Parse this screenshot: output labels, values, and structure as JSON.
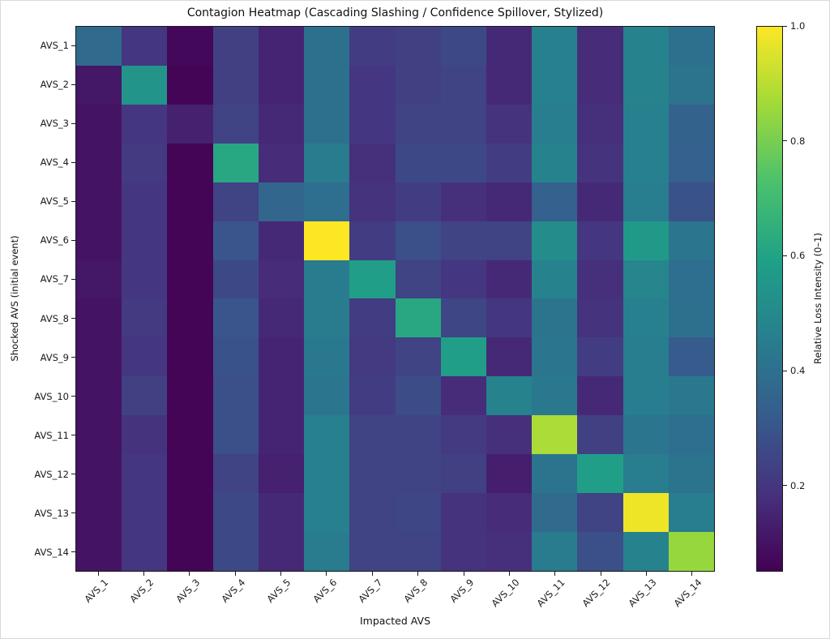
{
  "chart_data": {
    "type": "heatmap",
    "title": "Contagion Heatmap (Cascading Slashing / Confidence Spillover, Stylized)",
    "xlabel": "Impacted AVS",
    "ylabel": "Shocked AVS (initial event)",
    "x_categories": [
      "AVS_1",
      "AVS_2",
      "AVS_3",
      "AVS_4",
      "AVS_5",
      "AVS_6",
      "AVS_7",
      "AVS_8",
      "AVS_9",
      "AVS_10",
      "AVS_11",
      "AVS_12",
      "AVS_13",
      "AVS_14"
    ],
    "y_categories": [
      "AVS_1",
      "AVS_2",
      "AVS_3",
      "AVS_4",
      "AVS_5",
      "AVS_6",
      "AVS_7",
      "AVS_8",
      "AVS_9",
      "AVS_10",
      "AVS_11",
      "AVS_12",
      "AVS_13",
      "AVS_14"
    ],
    "matrix": [
      [
        0.38,
        0.2,
        0.07,
        0.23,
        0.15,
        0.4,
        0.22,
        0.23,
        0.26,
        0.16,
        0.46,
        0.17,
        0.47,
        0.4
      ],
      [
        0.11,
        0.54,
        0.06,
        0.23,
        0.15,
        0.4,
        0.2,
        0.23,
        0.24,
        0.16,
        0.46,
        0.17,
        0.47,
        0.41
      ],
      [
        0.1,
        0.2,
        0.14,
        0.24,
        0.16,
        0.4,
        0.2,
        0.24,
        0.24,
        0.19,
        0.45,
        0.18,
        0.46,
        0.35
      ],
      [
        0.1,
        0.21,
        0.06,
        0.62,
        0.17,
        0.44,
        0.18,
        0.26,
        0.26,
        0.22,
        0.47,
        0.19,
        0.46,
        0.34
      ],
      [
        0.1,
        0.2,
        0.06,
        0.24,
        0.36,
        0.39,
        0.19,
        0.22,
        0.18,
        0.16,
        0.34,
        0.16,
        0.45,
        0.29
      ],
      [
        0.1,
        0.2,
        0.06,
        0.3,
        0.16,
        1.0,
        0.22,
        0.28,
        0.24,
        0.24,
        0.51,
        0.2,
        0.56,
        0.42
      ],
      [
        0.11,
        0.2,
        0.06,
        0.26,
        0.17,
        0.44,
        0.58,
        0.24,
        0.2,
        0.16,
        0.47,
        0.18,
        0.48,
        0.39
      ],
      [
        0.1,
        0.21,
        0.06,
        0.3,
        0.16,
        0.44,
        0.22,
        0.62,
        0.25,
        0.2,
        0.41,
        0.19,
        0.46,
        0.4
      ],
      [
        0.1,
        0.2,
        0.06,
        0.29,
        0.15,
        0.43,
        0.21,
        0.24,
        0.58,
        0.16,
        0.42,
        0.22,
        0.45,
        0.32
      ],
      [
        0.1,
        0.23,
        0.06,
        0.28,
        0.15,
        0.42,
        0.22,
        0.27,
        0.17,
        0.47,
        0.43,
        0.16,
        0.45,
        0.43
      ],
      [
        0.1,
        0.19,
        0.06,
        0.28,
        0.15,
        0.46,
        0.24,
        0.24,
        0.21,
        0.18,
        0.88,
        0.23,
        0.42,
        0.39
      ],
      [
        0.1,
        0.2,
        0.06,
        0.24,
        0.14,
        0.46,
        0.24,
        0.24,
        0.23,
        0.13,
        0.41,
        0.58,
        0.45,
        0.41
      ],
      [
        0.1,
        0.2,
        0.06,
        0.26,
        0.16,
        0.46,
        0.24,
        0.25,
        0.19,
        0.17,
        0.38,
        0.24,
        0.98,
        0.45
      ],
      [
        0.1,
        0.2,
        0.06,
        0.26,
        0.16,
        0.44,
        0.24,
        0.24,
        0.19,
        0.18,
        0.44,
        0.28,
        0.47,
        0.85
      ]
    ],
    "colormap": "viridis",
    "vmin": 0.05,
    "vmax": 1.0,
    "x_tick_rotation": 45,
    "grid": false,
    "legend": "none",
    "colorbar": {
      "label": "Relative Loss Intensity (0–1)",
      "ticks": [
        0.2,
        0.4,
        0.6,
        0.8,
        1.0
      ],
      "position": "right"
    }
  }
}
